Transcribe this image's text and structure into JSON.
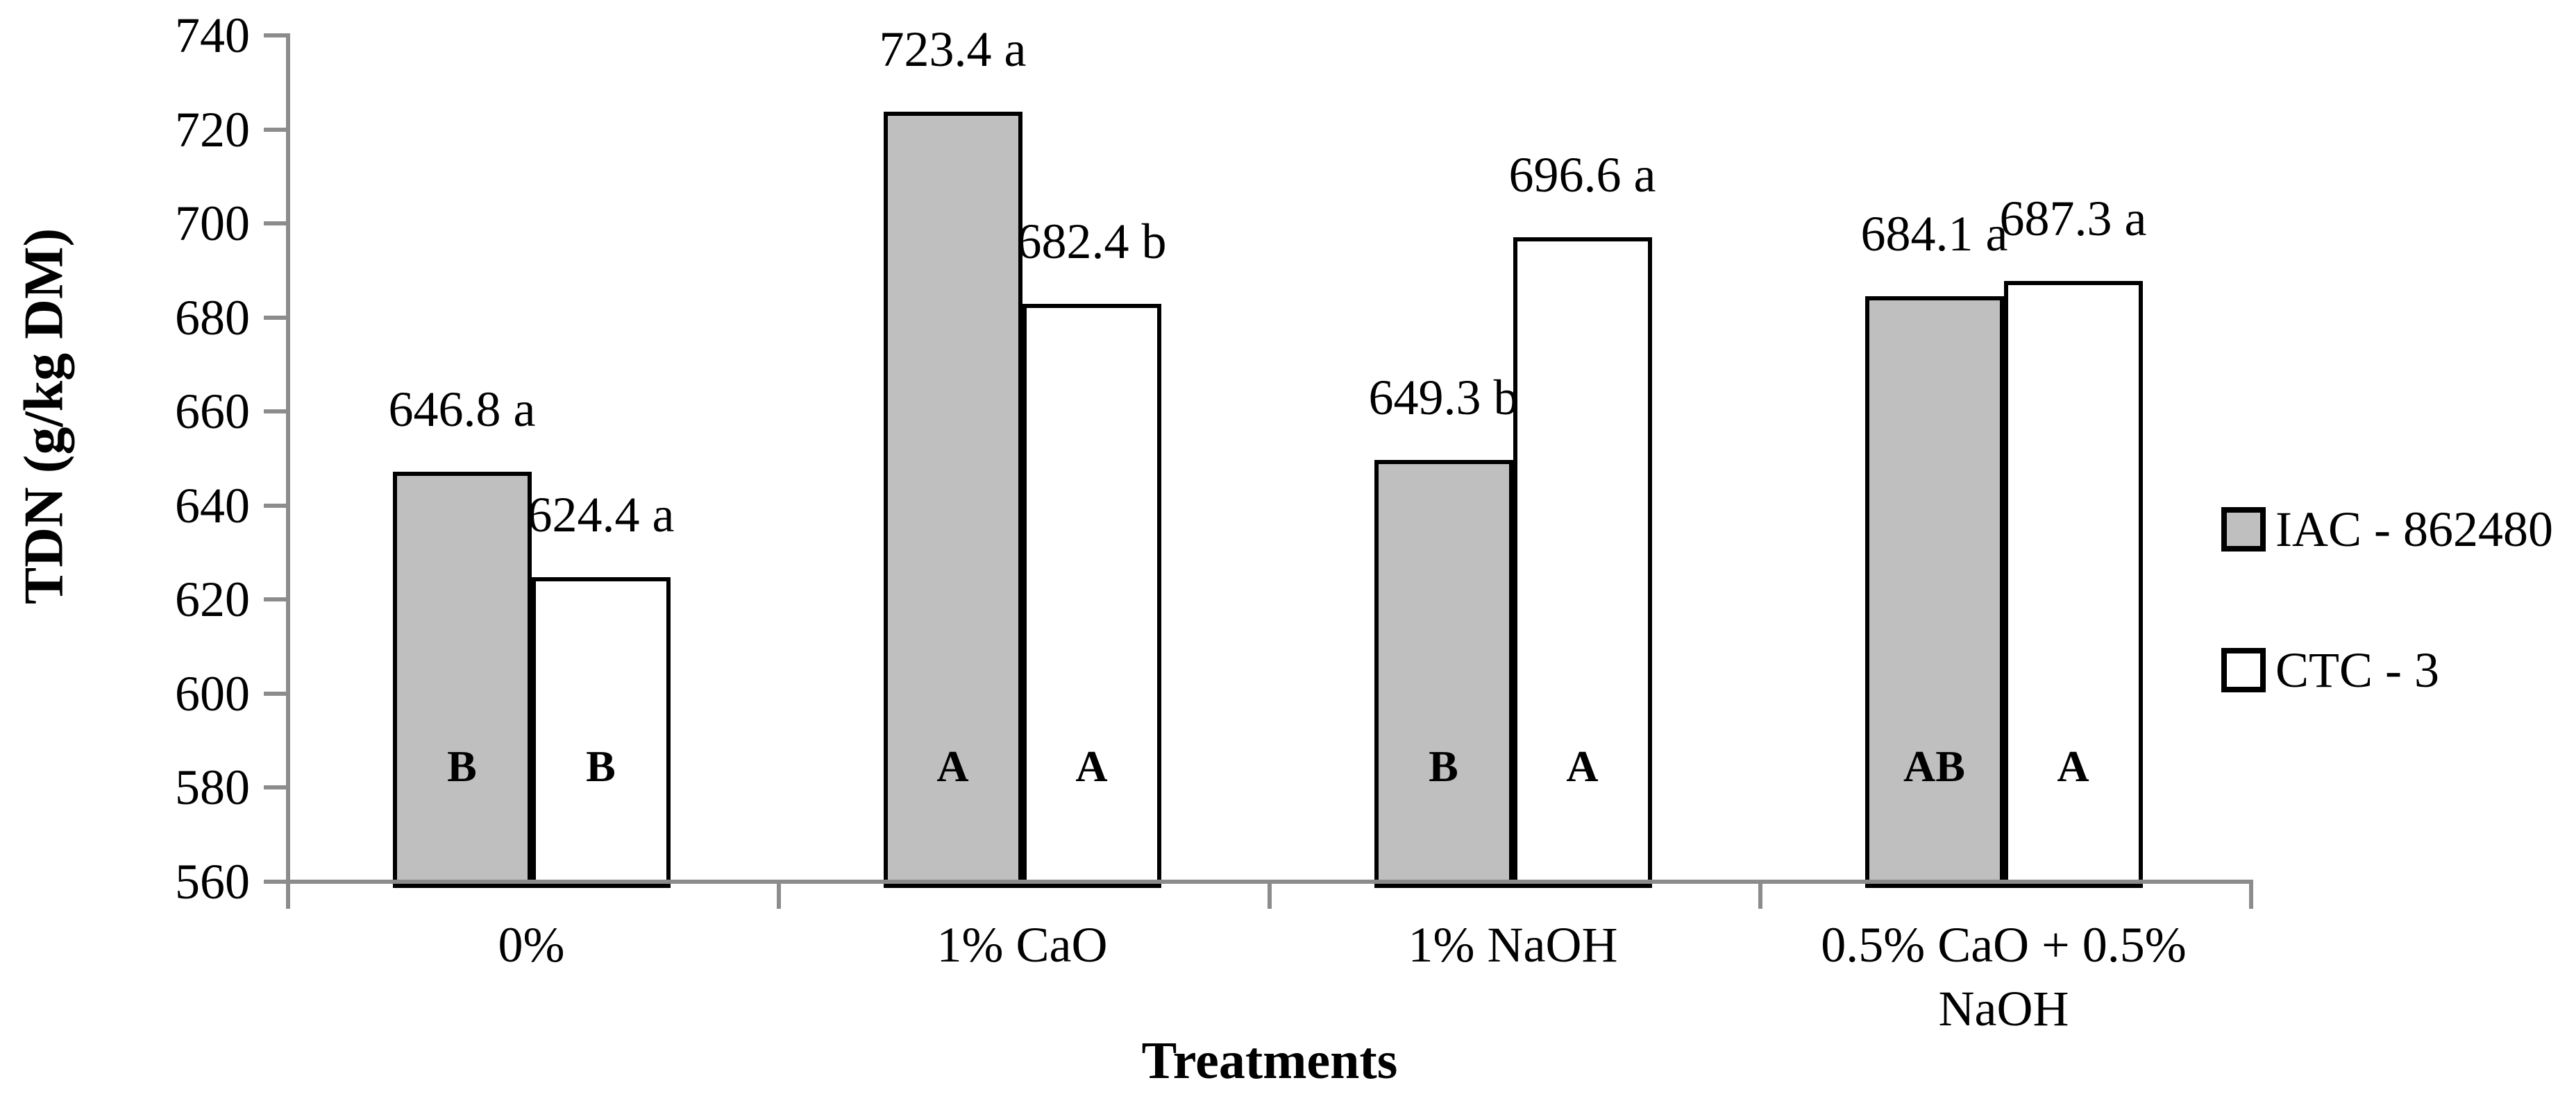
{
  "figure": {
    "y_axis_title": "TDN (g/kg DM)",
    "x_axis_title": "Treatments"
  },
  "chart_data": {
    "type": "bar",
    "title": "",
    "xlabel": "Treatments",
    "ylabel": "TDN (g/kg DM)",
    "ylim": [
      560,
      740
    ],
    "yticks": [
      560,
      580,
      600,
      620,
      640,
      660,
      680,
      700,
      720,
      740
    ],
    "grid": false,
    "legend_position": "right",
    "categories": [
      "0%",
      "1% CaO",
      "1% NaOH",
      "0.5% CaO + 0.5% NaOH"
    ],
    "series": [
      {
        "name": "IAC - 862480",
        "fill": "#bfbfbf",
        "values": [
          646.8,
          723.4,
          649.3,
          684.1
        ],
        "value_labels": [
          "646.8 a",
          "723.4 a",
          "649.3 b",
          "684.1 a"
        ],
        "bar_letters": [
          "B",
          "A",
          "B",
          "AB"
        ]
      },
      {
        "name": "CTC - 3",
        "fill": "#ffffff",
        "values": [
          624.4,
          682.4,
          696.6,
          687.3
        ],
        "value_labels": [
          "624.4 a",
          "682.4 b",
          "696.6 a",
          "687.3 a"
        ],
        "bar_letters": [
          "B",
          "A",
          "A",
          "A"
        ]
      }
    ]
  },
  "colors": {
    "axis": "#8c8c8c",
    "bar_border": "#000000",
    "gray_fill": "#bfbfbf",
    "white_fill": "#ffffff",
    "text": "#000000",
    "background": "#ffffff"
  }
}
